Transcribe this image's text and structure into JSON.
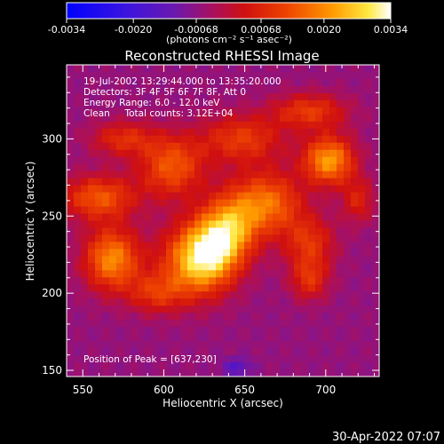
{
  "chart_data": {
    "type": "heatmap",
    "title": "Reconstructed RHESSI Image",
    "xlabel": "Heliocentric X (arcsec)",
    "ylabel": "Heliocentric Y (arcsec)",
    "xlim": [
      540,
      733
    ],
    "ylim": [
      146,
      348
    ],
    "xticks": [
      550,
      600,
      650,
      700
    ],
    "yticks": [
      150,
      200,
      250,
      300
    ],
    "colorbar": {
      "min": -0.0034,
      "max": 0.0034,
      "ticks": [
        "-0.0034",
        "-0.0020",
        "-0.00068",
        "0.00068",
        "0.0020",
        "0.0034"
      ],
      "unit_label": "(photons cm⁻² s⁻¹ asec⁻²)"
    },
    "colors": {
      "background": "#6b2aa8",
      "low": "#1a1aff",
      "mid": "#d01010",
      "high": "#ffffff"
    },
    "info_lines": [
      "19-Jul-2002 13:29:44.000 to 13:35:20.000",
      "Detectors: 3F 4F 5F 6F 7F 8F, Att 0",
      "Energy Range: 6.0 - 12.0 keV",
      "Clean     Total counts: 3.12E+04"
    ],
    "peak_label": "Position of Peak = [637,230]",
    "sources": [
      {
        "x": 637,
        "y": 238,
        "sx": 13,
        "sy": 22,
        "rot": -30,
        "amp": 0.0034
      },
      {
        "x": 620,
        "y": 222,
        "sx": 16,
        "sy": 16,
        "rot": 0,
        "amp": 0.0022
      },
      {
        "x": 568,
        "y": 222,
        "sx": 12,
        "sy": 14,
        "rot": 0,
        "amp": 0.0026
      },
      {
        "x": 560,
        "y": 262,
        "sx": 16,
        "sy": 10,
        "rot": 0,
        "amp": 0.002
      },
      {
        "x": 702,
        "y": 286,
        "sx": 11,
        "sy": 11,
        "rot": 0,
        "amp": 0.0028
      },
      {
        "x": 690,
        "y": 318,
        "sx": 16,
        "sy": 8,
        "rot": 0,
        "amp": 0.0016
      },
      {
        "x": 605,
        "y": 282,
        "sx": 14,
        "sy": 14,
        "rot": 0,
        "amp": 0.002
      },
      {
        "x": 648,
        "y": 300,
        "sx": 18,
        "sy": 11,
        "rot": 0,
        "amp": 0.0016
      },
      {
        "x": 668,
        "y": 258,
        "sx": 13,
        "sy": 14,
        "rot": 0,
        "amp": 0.0018
      },
      {
        "x": 690,
        "y": 232,
        "sx": 11,
        "sy": 13,
        "rot": 0,
        "amp": 0.0015
      },
      {
        "x": 595,
        "y": 200,
        "sx": 12,
        "sy": 9,
        "rot": 0,
        "amp": 0.0014
      },
      {
        "x": 690,
        "y": 208,
        "sx": 8,
        "sy": 9,
        "rot": 0,
        "amp": 0.0013
      },
      {
        "x": 575,
        "y": 300,
        "sx": 14,
        "sy": 8,
        "rot": 0,
        "amp": 0.0014
      },
      {
        "x": 720,
        "y": 260,
        "sx": 7,
        "sy": 10,
        "rot": 0,
        "amp": 0.0012
      }
    ]
  },
  "footer": {
    "timestamp": "30-Apr-2022 07:07"
  }
}
